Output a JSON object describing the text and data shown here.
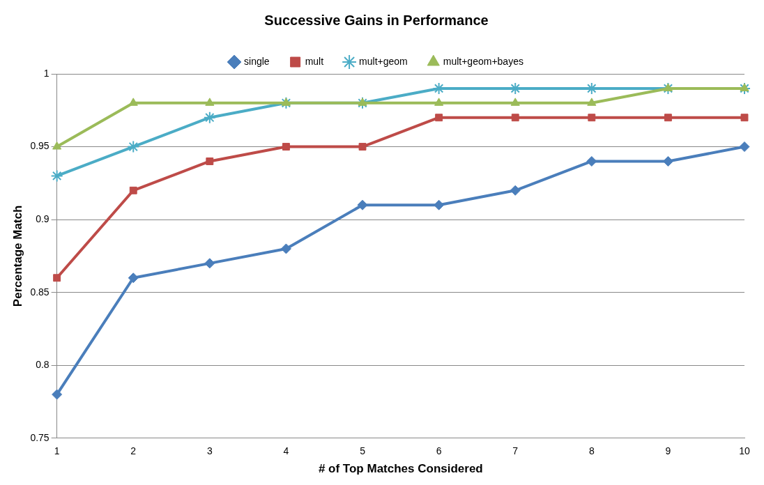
{
  "chart_data": {
    "type": "line",
    "title": "Successive Gains in Performance",
    "xlabel": "# of Top Matches Considered",
    "ylabel": "Percentage Match",
    "categories": [
      "1",
      "2",
      "3",
      "4",
      "5",
      "6",
      "7",
      "8",
      "9",
      "10"
    ],
    "series": [
      {
        "name": "single",
        "color": "#4a7ebb",
        "marker": "diamond",
        "values": [
          0.78,
          0.86,
          0.87,
          0.88,
          0.91,
          0.91,
          0.92,
          0.94,
          0.94,
          0.95
        ]
      },
      {
        "name": "mult",
        "color": "#be4b48",
        "marker": "square",
        "values": [
          0.86,
          0.92,
          0.94,
          0.95,
          0.95,
          0.97,
          0.97,
          0.97,
          0.97,
          0.97
        ]
      },
      {
        "name": "mult+geom",
        "color": "#4bacc6",
        "marker": "cross",
        "values": [
          0.93,
          0.95,
          0.97,
          0.98,
          0.98,
          0.99,
          0.99,
          0.99,
          0.99,
          0.99
        ]
      },
      {
        "name": "mult+geom+bayes",
        "color": "#9bbb59",
        "marker": "triangle",
        "values": [
          0.95,
          0.98,
          0.98,
          0.98,
          0.98,
          0.98,
          0.98,
          0.98,
          0.99,
          0.99
        ]
      }
    ],
    "ylim": [
      0.75,
      1
    ],
    "yticks": [
      0.75,
      0.8,
      0.85,
      0.9,
      0.95,
      1
    ],
    "grid": "y",
    "legend": "top",
    "line_style": "solid"
  }
}
